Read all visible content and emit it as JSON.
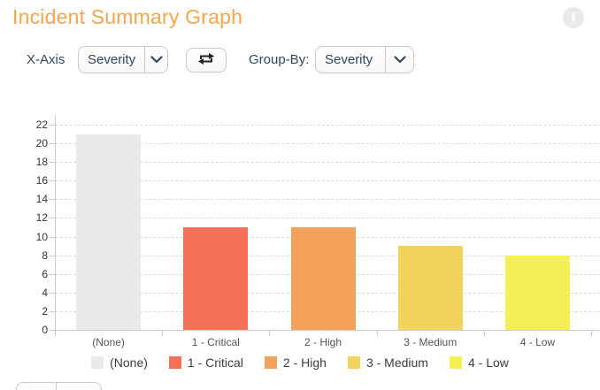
{
  "header": {
    "title": "Incident Summary Graph",
    "title_color": "#F7A54B",
    "info_icon": "info-icon",
    "info_glyph": "i"
  },
  "controls": {
    "x_axis_label": "X-Axis",
    "x_axis_value": "Severity",
    "swap_icon": "swap-arrows-icon",
    "group_by_label": "Group-By:",
    "group_by_value": "Severity"
  },
  "chart_data": {
    "type": "bar",
    "title": "Incident Summary Graph",
    "categories": [
      "(None)",
      "1 - Critical",
      "2 - High",
      "3 - Medium",
      "4 - Low"
    ],
    "values": [
      21,
      11,
      11,
      9,
      8
    ],
    "colors": [
      "#E9E9E9",
      "#F47057",
      "#F4A259",
      "#F2D45C",
      "#F4EF55"
    ],
    "xlabel": "",
    "ylabel": "",
    "ylim": [
      0,
      22
    ],
    "ytick_step": 2,
    "grid": true,
    "grid_style": "dashed",
    "legend_position": "bottom",
    "legend": [
      "(None)",
      "1 - Critical",
      "2 - High",
      "3 - Medium",
      "4 - Low"
    ]
  }
}
